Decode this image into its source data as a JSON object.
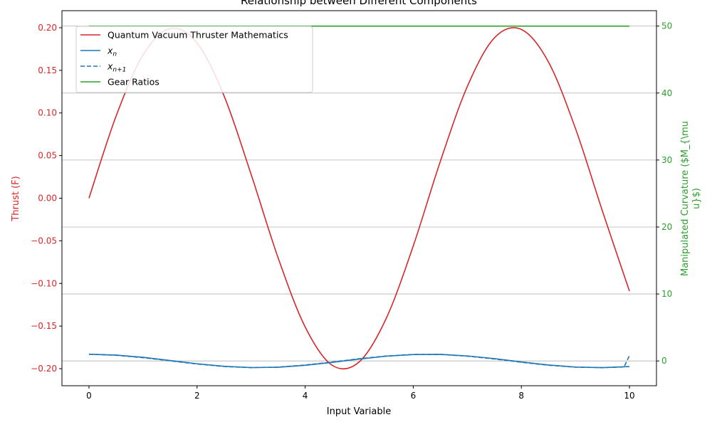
{
  "chart_data": {
    "type": "line",
    "title": "Relationship between Different Components",
    "xlabel": "Input Variable",
    "ylabel_left": "Thrust (F)",
    "ylabel_right_lines": [
      "Manipulated Curvature ($M_{\\mu",
      "u}$)"
    ],
    "xlim": [
      -0.5,
      10.5
    ],
    "ylim_left": [
      -0.22,
      0.22
    ],
    "ylim_right": [
      -3.7,
      52.3
    ],
    "xticks": [
      0,
      2,
      4,
      6,
      8,
      10
    ],
    "yticks_left": [
      0.2,
      0.15,
      0.1,
      0.05,
      0.0,
      -0.05,
      -0.1,
      -0.15,
      -0.2
    ],
    "yticks_right": [
      0,
      10,
      20,
      30,
      40,
      50
    ],
    "grid": "horizontal-right-axis",
    "legend_position": "top-left",
    "colors": {
      "thrust": "#d62728",
      "xn": "#1f77b4",
      "gear": "#2ca02c",
      "left_axis": "#d62728",
      "right_axis": "#2ca02c"
    },
    "series": [
      {
        "name": "Quantum Vacuum Thruster Mathematics",
        "axis": "left",
        "style": "solid",
        "color": "#d62728",
        "x": [
          0.0,
          0.5,
          1.0,
          1.5,
          2.0,
          2.5,
          3.0,
          3.5,
          4.0,
          4.5,
          5.0,
          5.5,
          6.0,
          6.5,
          7.0,
          7.5,
          8.0,
          8.5,
          9.0,
          9.5,
          10.0
        ],
        "y": [
          0.0,
          0.096,
          0.168,
          0.199,
          0.182,
          0.12,
          0.028,
          -0.07,
          -0.151,
          -0.196,
          -0.192,
          -0.141,
          -0.056,
          0.043,
          0.131,
          0.188,
          0.198,
          0.16,
          0.082,
          -0.015,
          -0.109
        ]
      },
      {
        "name": "$x_n$",
        "axis": "right",
        "style": "solid",
        "color": "#1f77b4",
        "x": [
          0.0,
          0.5,
          1.0,
          1.5,
          2.0,
          2.5,
          3.0,
          3.5,
          4.0,
          4.5,
          5.0,
          5.5,
          6.0,
          6.5,
          7.0,
          7.5,
          8.0,
          8.5,
          9.0,
          9.5,
          10.0
        ],
        "y": [
          1.0,
          0.88,
          0.54,
          0.07,
          -0.42,
          -0.8,
          -0.99,
          -0.94,
          -0.65,
          -0.21,
          0.28,
          0.71,
          0.96,
          0.98,
          0.75,
          0.35,
          -0.15,
          -0.6,
          -0.91,
          -1.0,
          -0.84
        ]
      },
      {
        "name": "$x_{n+1}$",
        "axis": "right",
        "style": "dashed",
        "color": "#1f77b4",
        "x": [
          0.0,
          0.5,
          1.0,
          1.5,
          2.0,
          2.5,
          3.0,
          3.5,
          4.0,
          4.5,
          5.0,
          5.5,
          6.0,
          6.5,
          7.0,
          7.5,
          8.0,
          8.5,
          9.0,
          9.5,
          9.9,
          10.0
        ],
        "y": [
          1.0,
          0.85,
          0.49,
          0.02,
          -0.46,
          -0.83,
          -1.0,
          -0.92,
          -0.61,
          -0.16,
          0.33,
          0.74,
          0.97,
          0.97,
          0.72,
          0.3,
          -0.2,
          -0.64,
          -0.93,
          -1.0,
          -0.9,
          0.8
        ]
      },
      {
        "name": "Gear Ratios",
        "axis": "right",
        "style": "solid",
        "color": "#2ca02c",
        "x": [
          0.0,
          10.0
        ],
        "y": [
          50,
          50
        ]
      }
    ],
    "legend": [
      {
        "label": "Quantum Vacuum Thruster Mathematics",
        "kind": "text",
        "color": "#d62728",
        "style": "solid"
      },
      {
        "label": "$x_n$",
        "kind": "math",
        "base": "x",
        "sub": "n",
        "color": "#1f77b4",
        "style": "solid"
      },
      {
        "label": "$x_{n+1}$",
        "kind": "math",
        "base": "x",
        "sub": "n+1",
        "color": "#1f77b4",
        "style": "dashed"
      },
      {
        "label": "Gear Ratios",
        "kind": "text",
        "color": "#2ca02c",
        "style": "solid"
      }
    ]
  }
}
